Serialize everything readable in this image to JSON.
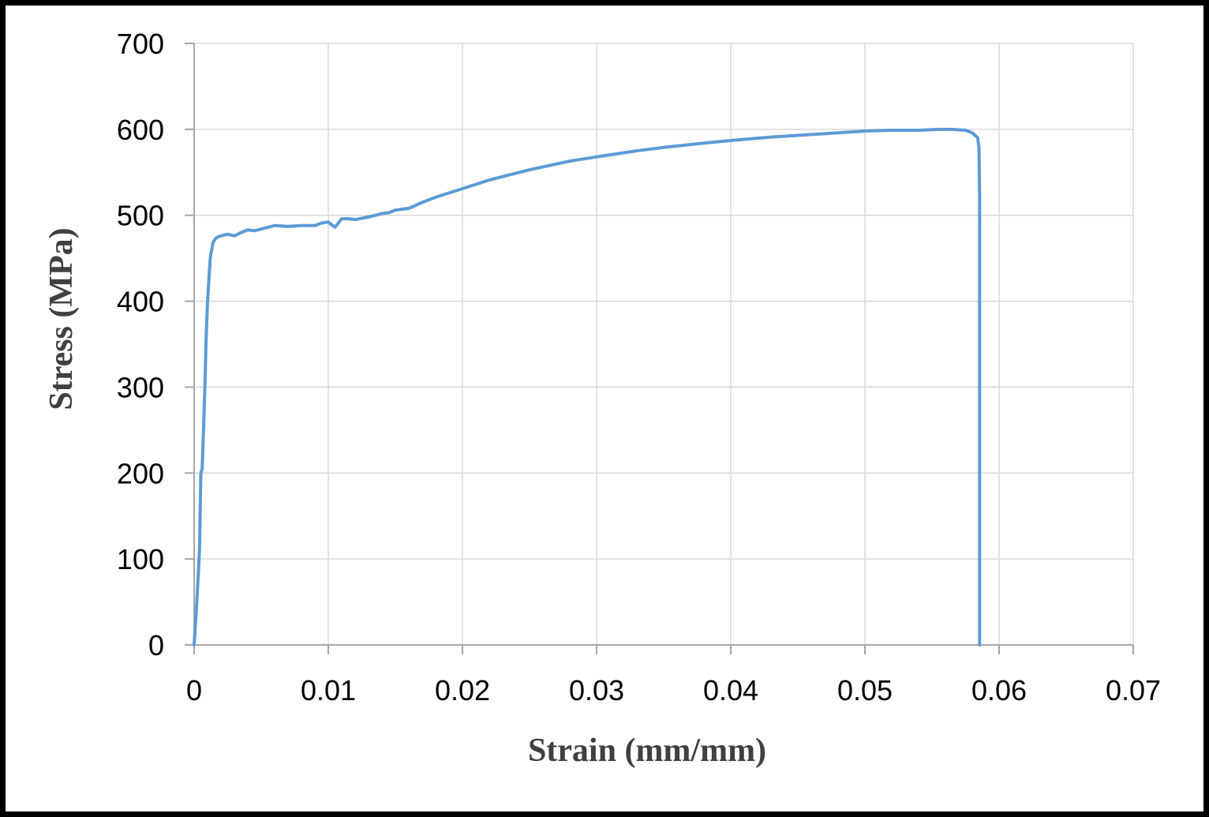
{
  "chart_data": {
    "type": "line",
    "title": "",
    "xlabel": "Strain (mm/mm)",
    "ylabel": "Stress (MPa)",
    "xlim": [
      0,
      0.07
    ],
    "ylim": [
      0,
      700
    ],
    "xticks": [
      0,
      0.01,
      0.02,
      0.03,
      0.04,
      0.05,
      0.06,
      0.07
    ],
    "xtick_labels": [
      "0",
      "0.01",
      "0.02",
      "0.03",
      "0.04",
      "0.05",
      "0.06",
      "0.07"
    ],
    "yticks": [
      0,
      100,
      200,
      300,
      400,
      500,
      600,
      700
    ],
    "ytick_labels": [
      "0",
      "100",
      "200",
      "300",
      "400",
      "500",
      "600",
      "700"
    ],
    "grid": true,
    "legend": "none",
    "colors": {
      "line": "#5b9bd5",
      "grid": "#d9d9d9",
      "axis": "#a6a6a6",
      "frame": "#000000"
    },
    "series": [
      {
        "x": [
          0,
          0.0002,
          0.0004,
          0.0005,
          0.0006,
          0.0007,
          0.0008,
          0.0009,
          0.001,
          0.0012,
          0.0014,
          0.0016,
          0.0018,
          0.002,
          0.0025,
          0.003,
          0.0035,
          0.004,
          0.0045,
          0.005,
          0.0055,
          0.006,
          0.007,
          0.008,
          0.009,
          0.0095,
          0.01,
          0.0105,
          0.011,
          0.0115,
          0.012,
          0.013,
          0.014,
          0.0145,
          0.015,
          0.016,
          0.017,
          0.018,
          0.02,
          0.022,
          0.025,
          0.028,
          0.03,
          0.033,
          0.035,
          0.038,
          0.04,
          0.043,
          0.045,
          0.048,
          0.05,
          0.052,
          0.054,
          0.0555,
          0.0565,
          0.0575,
          0.058,
          0.0584,
          0.0585,
          0.05855,
          0.05855,
          0.05855
        ],
        "y": [
          0,
          50,
          110,
          200,
          205,
          250,
          300,
          360,
          400,
          450,
          468,
          473,
          475,
          476,
          478,
          476,
          480,
          483,
          482,
          484,
          486,
          488,
          487,
          488,
          488,
          491,
          492,
          486,
          496,
          496,
          495,
          498,
          502,
          503,
          506,
          508,
          515,
          521,
          531,
          541,
          553,
          563,
          568,
          575,
          579,
          584,
          587,
          591,
          593,
          596,
          598,
          599,
          599,
          600,
          600,
          599,
          596,
          590,
          580,
          520,
          300,
          0
        ]
      }
    ]
  }
}
